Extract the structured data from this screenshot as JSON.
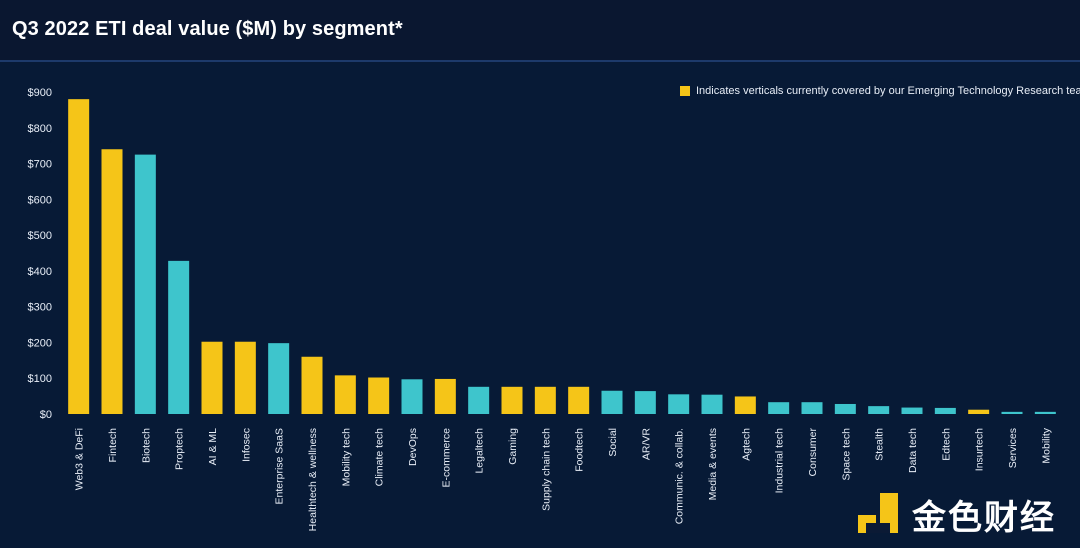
{
  "title": "Q3 2022 ETI deal value ($M) by segment*",
  "legend": {
    "label": "Indicates verticals currently covered by our Emerging Technology Research team",
    "color": "#f5c518"
  },
  "colors": {
    "covered": "#f5c518",
    "other": "#3ec5cc",
    "axis_text": "#e8eef7",
    "background": "#071a36"
  },
  "watermark": {
    "text": "金色财经",
    "icon": "jinse-logo-icon"
  },
  "chart_data": {
    "type": "bar",
    "title": "Q3 2022 ETI deal value ($M) by segment*",
    "xlabel": "",
    "ylabel": "",
    "ylim": [
      0,
      900
    ],
    "yticks": [
      0,
      100,
      200,
      300,
      400,
      500,
      600,
      700,
      800,
      900
    ],
    "ytick_labels": [
      "$0",
      "$100",
      "$200",
      "$300",
      "$400",
      "$500",
      "$600",
      "$700",
      "$800",
      "$900"
    ],
    "categories": [
      "Web3 & DeFi",
      "Fintech",
      "Biotech",
      "Proptech",
      "AI & ML",
      "Infosec",
      "Enterprise SaaS",
      "Healthtech & wellness",
      "Mobility tech",
      "Climate tech",
      "DevOps",
      "E-commerce",
      "Legaltech",
      "Gaming",
      "Supply chain tech",
      "Foodtech",
      "Social",
      "AR/VR",
      "Communic. & collab.",
      "Media & events",
      "Agtech",
      "Industrial tech",
      "Consumer",
      "Space tech",
      "Stealth",
      "Data tech",
      "Edtech",
      "Insurtech",
      "Services",
      "Mobility"
    ],
    "values": [
      880,
      740,
      725,
      428,
      202,
      202,
      198,
      160,
      108,
      102,
      97,
      98,
      76,
      76,
      76,
      76,
      65,
      64,
      55,
      54,
      49,
      33,
      33,
      28,
      22,
      18,
      17,
      12,
      6,
      6
    ],
    "covered": [
      true,
      true,
      false,
      false,
      true,
      true,
      false,
      true,
      true,
      true,
      false,
      true,
      false,
      true,
      true,
      true,
      false,
      false,
      false,
      false,
      true,
      false,
      false,
      false,
      false,
      false,
      false,
      true,
      false,
      false
    ],
    "legend_position": "top-right"
  }
}
